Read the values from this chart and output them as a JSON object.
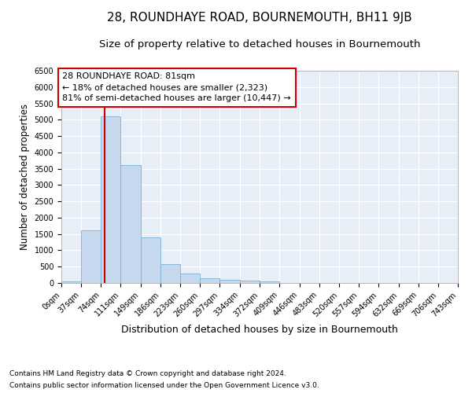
{
  "title": "28, ROUNDHAYE ROAD, BOURNEMOUTH, BH11 9JB",
  "subtitle": "Size of property relative to detached houses in Bournemouth",
  "xlabel": "Distribution of detached houses by size in Bournemouth",
  "ylabel": "Number of detached properties",
  "footer_line1": "Contains HM Land Registry data © Crown copyright and database right 2024.",
  "footer_line2": "Contains public sector information licensed under the Open Government Licence v3.0.",
  "annotation_line0": "28 ROUNDHAYE ROAD: 81sqm",
  "annotation_line1": "← 18% of detached houses are smaller (2,323)",
  "annotation_line2": "81% of semi-detached houses are larger (10,447) →",
  "bin_edges": [
    0,
    37,
    74,
    111,
    149,
    186,
    223,
    260,
    297,
    334,
    372,
    409,
    446,
    483,
    520,
    557,
    594,
    632,
    669,
    706,
    743
  ],
  "bar_heights": [
    55,
    1620,
    5100,
    3600,
    1400,
    580,
    300,
    140,
    90,
    75,
    50,
    10,
    5,
    2,
    1,
    1,
    0,
    0,
    0,
    0
  ],
  "bar_color": "#c5d8ed",
  "bar_edge_color": "#7ab4d4",
  "vline_color": "#cc0000",
  "vline_x": 81,
  "annotation_box_color": "#cc0000",
  "plot_bg_color": "#e8eef8",
  "ylim": [
    0,
    6500
  ],
  "yticks": [
    0,
    500,
    1000,
    1500,
    2000,
    2500,
    3000,
    3500,
    4000,
    4500,
    5000,
    5500,
    6000,
    6500
  ],
  "grid_color": "#ffffff",
  "title_fontsize": 11,
  "subtitle_fontsize": 9.5,
  "xlabel_fontsize": 9,
  "ylabel_fontsize": 8.5,
  "tick_fontsize": 7,
  "annotation_fontsize": 8,
  "footer_fontsize": 6.5
}
